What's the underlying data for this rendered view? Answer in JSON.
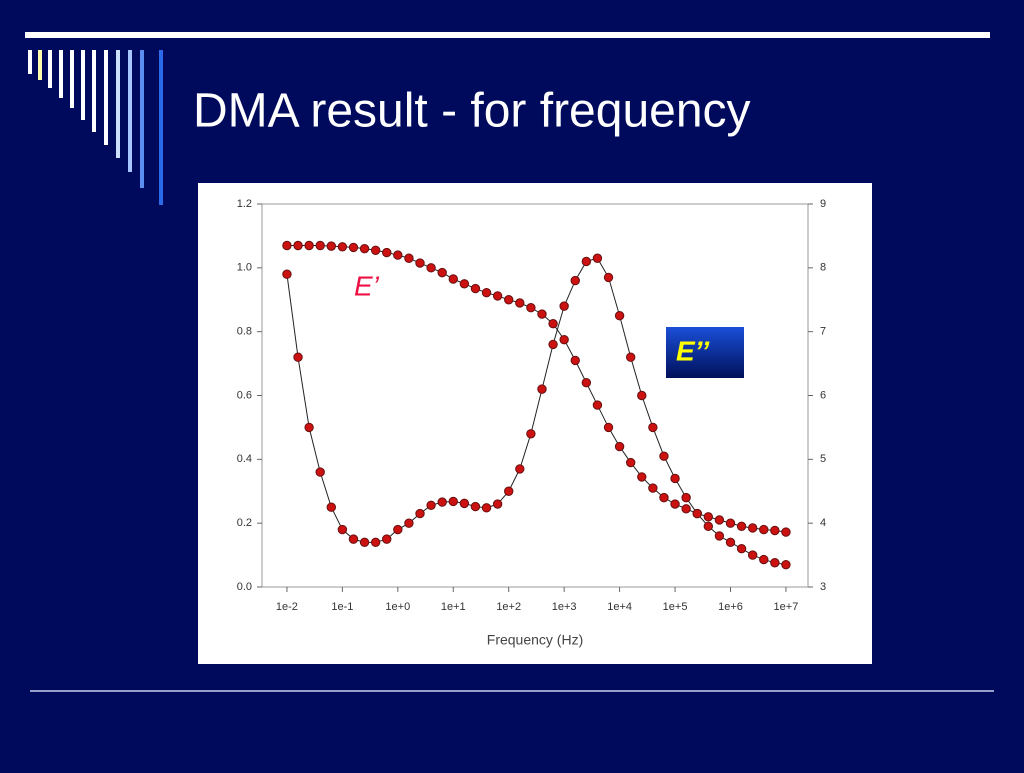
{
  "chart_data": {
    "type": "line",
    "title": "DMA result - for frequency",
    "x_label": "Frequency (Hz)",
    "x_scale": "log",
    "xlim": [
      0.00355,
      25000000
    ],
    "xticks": [
      {
        "value": 0.01,
        "label": "1e-2"
      },
      {
        "value": 0.1,
        "label": "1e-1"
      },
      {
        "value": 1,
        "label": "1e+0"
      },
      {
        "value": 10,
        "label": "1e+1"
      },
      {
        "value": 100,
        "label": "1e+2"
      },
      {
        "value": 1000,
        "label": "1e+3"
      },
      {
        "value": 10000,
        "label": "1e+4"
      },
      {
        "value": 100000,
        "label": "1e+5"
      },
      {
        "value": 1000000,
        "label": "1e+6"
      },
      {
        "value": 10000000,
        "label": "1e+7"
      }
    ],
    "ylim": [
      0,
      1.2
    ],
    "yticks": [
      {
        "value": 0,
        "label": "0.0"
      },
      {
        "value": 0.2,
        "label": "0.2"
      },
      {
        "value": 0.4,
        "label": "0.4"
      },
      {
        "value": 0.6,
        "label": "0.6"
      },
      {
        "value": 0.8,
        "label": "0.8"
      },
      {
        "value": 1,
        "label": "1.0"
      },
      {
        "value": 1.2,
        "label": "1.2"
      }
    ],
    "y2lim": [
      3,
      9
    ],
    "y2ticks": [
      3,
      4,
      5,
      6,
      7,
      8,
      9
    ],
    "grid": false,
    "x": [
      0.01,
      0.01585,
      0.02512,
      0.03981,
      0.0631,
      0.1,
      0.1585,
      0.2512,
      0.3981,
      0.631,
      1,
      1.585,
      2.512,
      3.981,
      6.31,
      10,
      15.85,
      25.12,
      39.81,
      63.1,
      100,
      158.5,
      251.2,
      398.1,
      631,
      1000,
      1585,
      2512,
      3981,
      6310,
      10000,
      15850,
      25120,
      39810,
      63100,
      100000,
      158500,
      251200,
      398100,
      631000,
      1000000,
      1585000,
      2512000,
      3981000,
      6310000,
      10000000
    ],
    "series": [
      {
        "name": "E’",
        "color": "#cc1111",
        "axis": "y",
        "values": [
          1.07,
          1.07,
          1.07,
          1.07,
          1.068,
          1.066,
          1.064,
          1.06,
          1.055,
          1.048,
          1.04,
          1.03,
          1.015,
          1.0,
          0.985,
          0.965,
          0.95,
          0.935,
          0.922,
          0.912,
          0.9,
          0.89,
          0.875,
          0.855,
          0.825,
          0.775,
          0.71,
          0.64,
          0.57,
          0.5,
          0.44,
          0.39,
          0.345,
          0.31,
          0.28,
          0.26,
          0.245,
          0.23,
          0.22,
          0.21,
          0.2,
          0.19,
          0.185,
          0.18,
          0.177,
          0.172
        ]
      },
      {
        "name": "E’’",
        "color": "#cc1111",
        "axis": "y2",
        "values": [
          7.9,
          6.6,
          5.5,
          4.8,
          4.25,
          3.9,
          3.75,
          3.7,
          3.7,
          3.75,
          3.9,
          4,
          4.15,
          4.28,
          4.33,
          4.34,
          4.31,
          4.26,
          4.24,
          4.3,
          4.5,
          4.85,
          5.4,
          6.1,
          6.8,
          7.4,
          7.8,
          8.1,
          8.15,
          7.85,
          7.25,
          6.6,
          6,
          5.5,
          5.05,
          4.7,
          4.4,
          4.15,
          3.95,
          3.8,
          3.7,
          3.6,
          3.5,
          3.43,
          3.38,
          3.35
        ]
      }
    ]
  }
}
